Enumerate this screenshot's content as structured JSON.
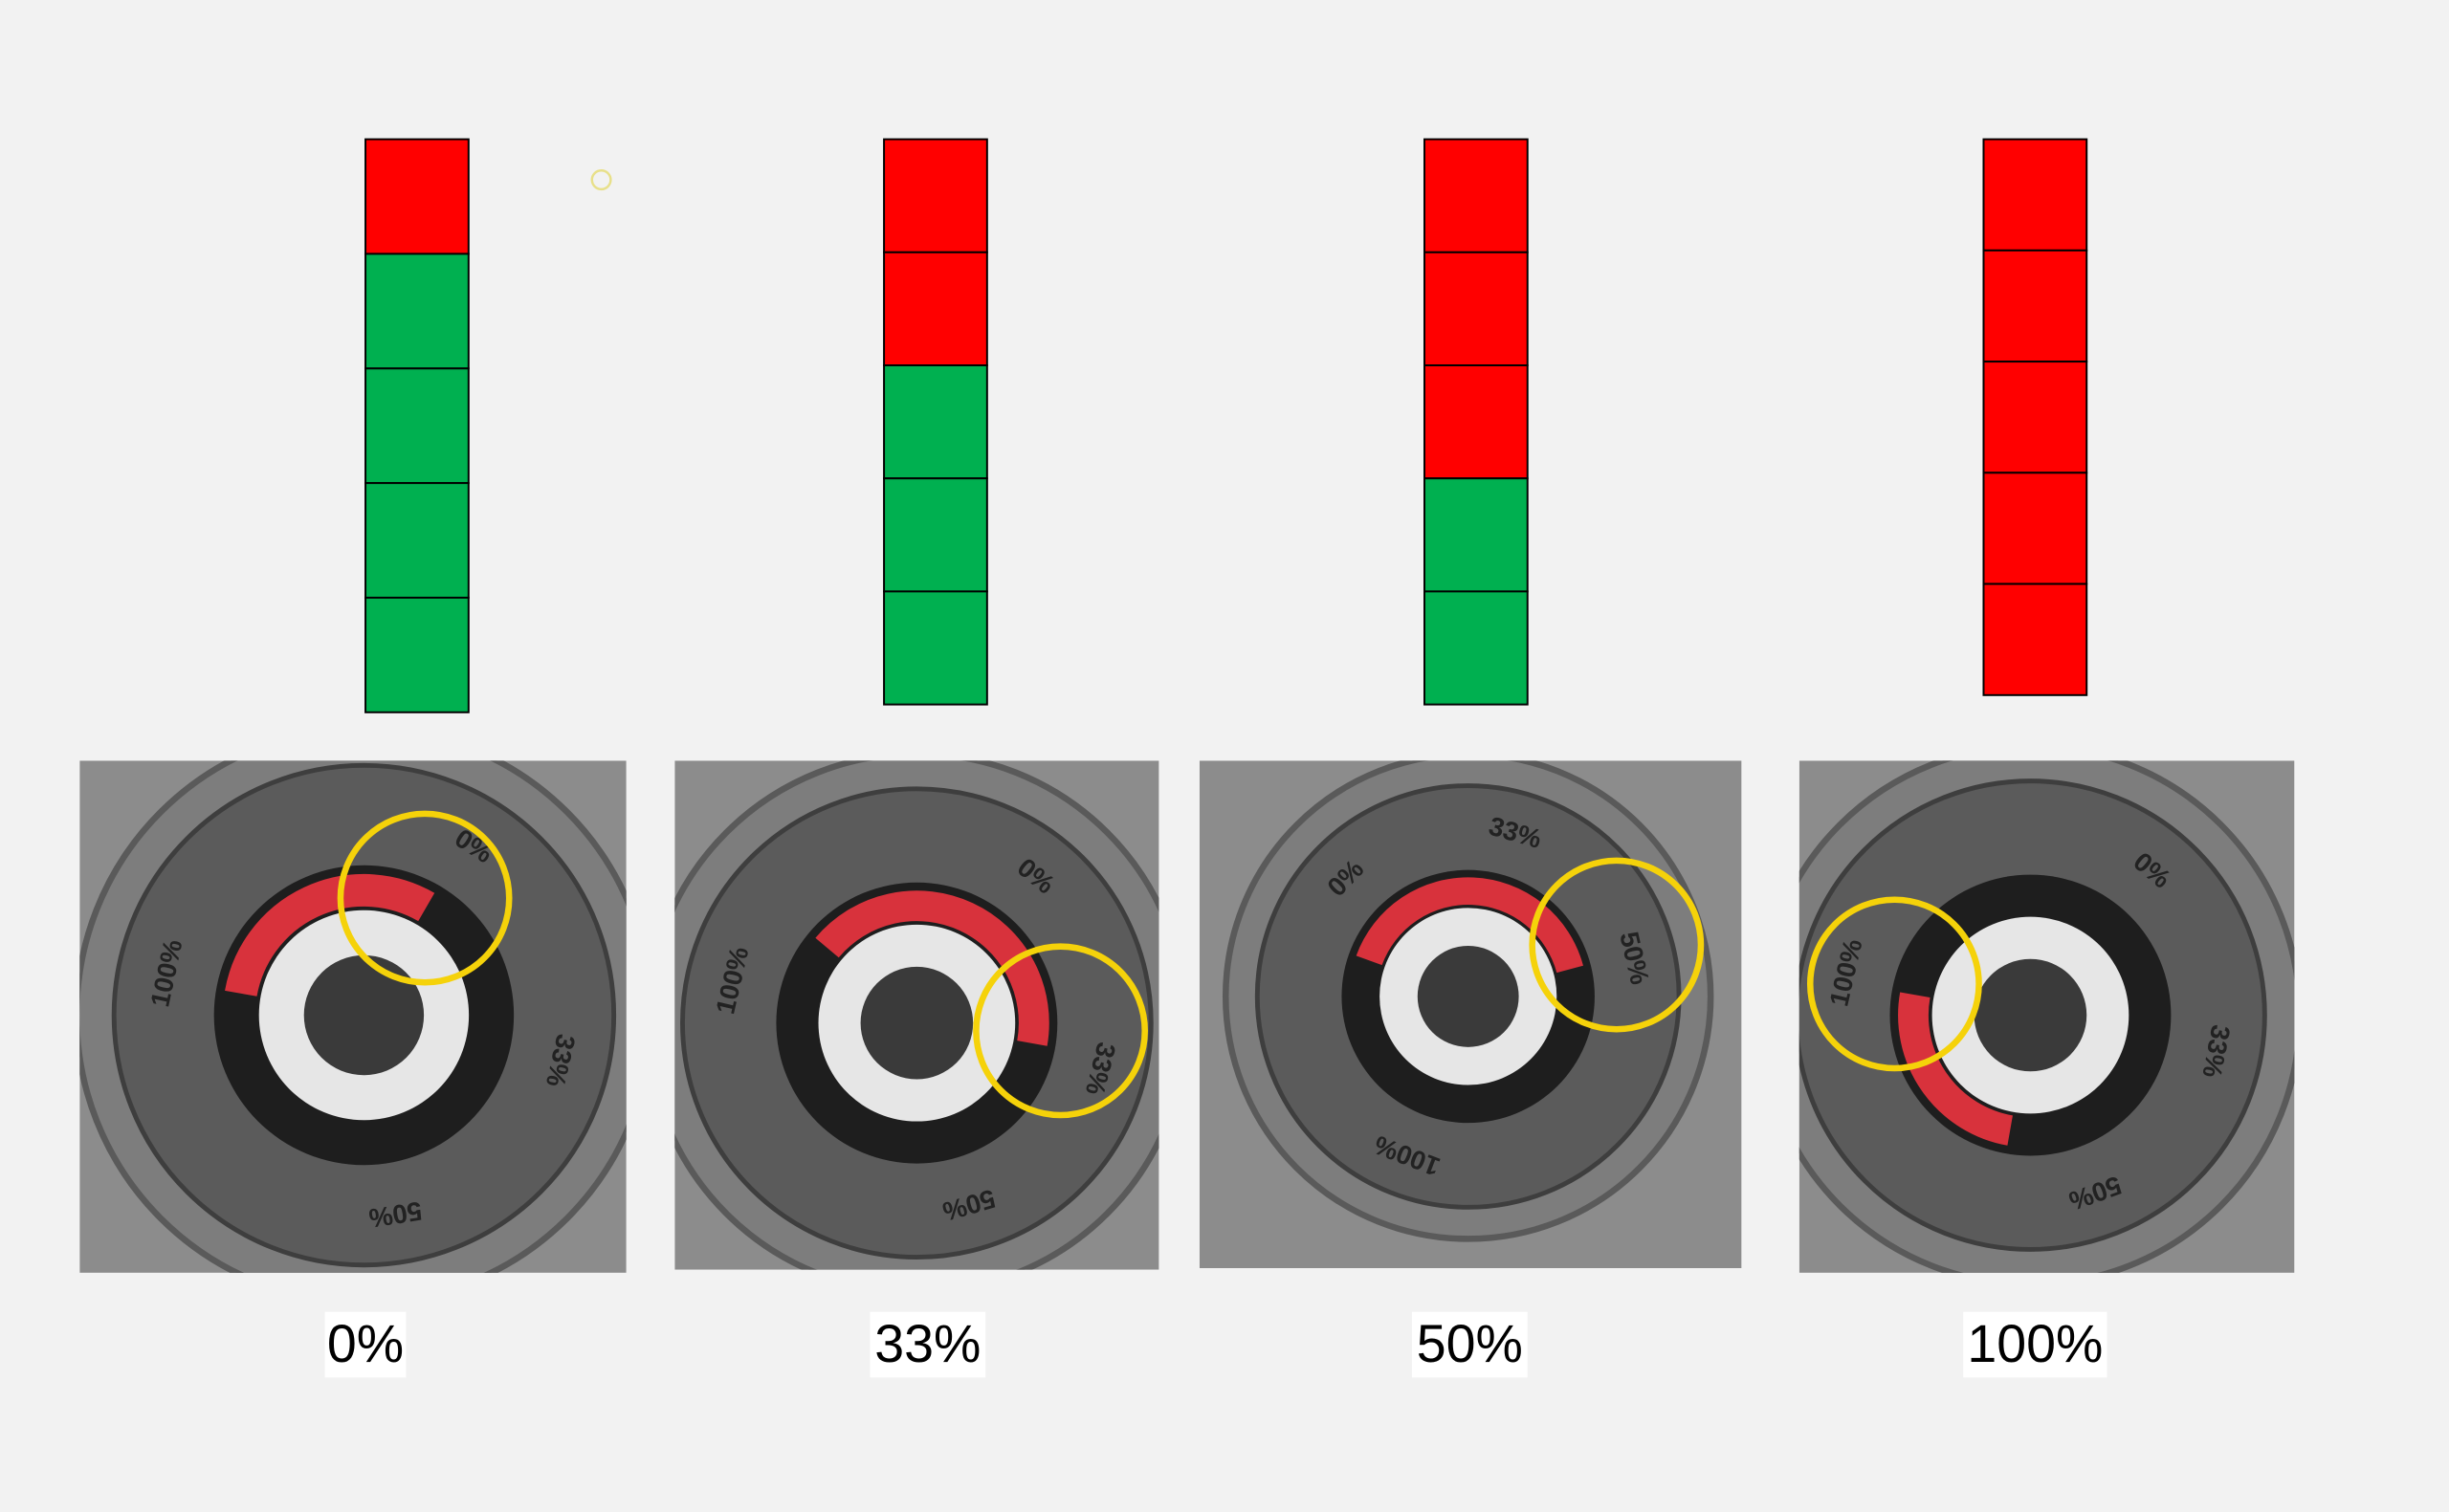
{
  "panels": [
    {
      "caption": "0%",
      "stack": {
        "red": 1,
        "green": 4
      },
      "dial_labels": [
        "0%",
        "33%",
        "50%",
        "100%"
      ]
    },
    {
      "caption": "33%",
      "stack": {
        "red": 2,
        "green": 3
      },
      "dial_labels": [
        "0%",
        "33%",
        "50%",
        "100%"
      ]
    },
    {
      "caption": "50%",
      "stack": {
        "red": 3,
        "green": 2
      },
      "dial_labels": [
        "0%",
        "33%",
        "50%",
        "100%"
      ]
    },
    {
      "caption": "100%",
      "stack": {
        "red": 5,
        "green": 0
      },
      "dial_labels": [
        "0%",
        "33%",
        "50%",
        "100%"
      ]
    }
  ]
}
